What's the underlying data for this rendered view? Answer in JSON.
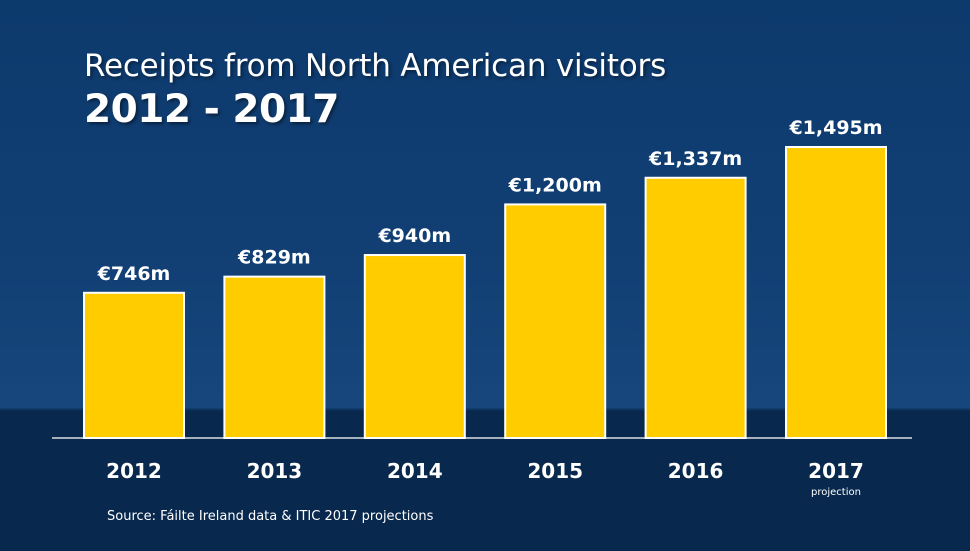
{
  "header": {
    "title": "Receipts from North American visitors",
    "subtitle": "2012 - 2017"
  },
  "chart_data": {
    "type": "bar",
    "categories": [
      "2012",
      "2013",
      "2014",
      "2015",
      "2016",
      "2017"
    ],
    "category_notes": [
      "",
      "",
      "",
      "",
      "",
      "projection"
    ],
    "values": [
      746,
      829,
      940,
      1200,
      1337,
      1495
    ],
    "value_labels": [
      "€746m",
      "€829m",
      "€940m",
      "€1,200m",
      "€1,337m",
      "€1,495m"
    ],
    "title": "Receipts from North American visitors",
    "subtitle": "2012 - 2017",
    "xlabel": "",
    "ylabel": "",
    "grid": false,
    "legend": "none"
  },
  "footer": {
    "source": "Source: Fáilte Ireland data & ITIC 2017 projections"
  },
  "colors": {
    "background_top": "#0d3a6d",
    "background_bottom": "#08284d",
    "bar_fill": "#ffcc00",
    "bar_stroke": "#ffffff",
    "text": "#ffffff",
    "axis": "#d9dde5"
  }
}
